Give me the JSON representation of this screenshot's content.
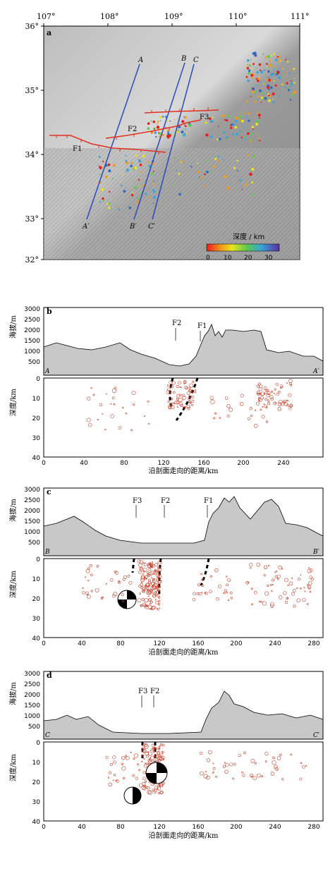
{
  "map": {
    "panel": "a",
    "lon_ticks": [
      "107°",
      "108°",
      "109°",
      "110°",
      "111°"
    ],
    "lat_ticks": [
      "36°",
      "35°",
      "34°",
      "33°",
      "32°"
    ],
    "profiles": [
      {
        "start": "A",
        "end": "A′"
      },
      {
        "start": "B",
        "end": "B′"
      },
      {
        "start": "C",
        "end": "C′"
      }
    ],
    "faults": [
      "F1",
      "F2",
      "F3"
    ],
    "legend": {
      "title": "深度 / km",
      "ticks": [
        "0",
        "10",
        "20",
        "30"
      ]
    }
  },
  "profile_b": {
    "panel": "b",
    "start": "A",
    "end": "A′",
    "elev_label": "海拔/m",
    "depth_label": "深度/km",
    "x_label": "沿剖面走向的距离/km",
    "elev_ticks": [
      "3000",
      "2500",
      "2000",
      "1500",
      "1000",
      "500"
    ],
    "depth_ticks": [
      "0",
      "10",
      "20",
      "30",
      "40"
    ],
    "x_ticks": [
      "0",
      "40",
      "80",
      "120",
      "160",
      "200",
      "240"
    ],
    "faults": [
      "F2",
      "F1"
    ]
  },
  "profile_c": {
    "panel": "c",
    "start": "B",
    "end": "B′",
    "elev_label": "海拔/m",
    "depth_label": "深度/km",
    "x_label": "沿剖面走向的距离/km",
    "elev_ticks": [
      "3000",
      "2500",
      "2000",
      "1500",
      "1000",
      "500"
    ],
    "depth_ticks": [
      "0",
      "10",
      "20",
      "30",
      "40"
    ],
    "x_ticks": [
      "0",
      "40",
      "80",
      "120",
      "160",
      "200",
      "240",
      "280"
    ],
    "faults": [
      "F3",
      "F2",
      "F1"
    ]
  },
  "profile_d": {
    "panel": "d",
    "start": "C",
    "end": "C′",
    "elev_label": "海拔/m",
    "depth_label": "深度/km",
    "x_label": "沿剖面走向的距离/km",
    "elev_ticks": [
      "3000",
      "2500",
      "2000",
      "1500",
      "1000",
      "500"
    ],
    "depth_ticks": [
      "0",
      "10",
      "20",
      "30",
      "40"
    ],
    "x_ticks": [
      "0",
      "40",
      "80",
      "120",
      "160",
      "200",
      "240",
      "280"
    ],
    "faults": [
      "F3",
      "F2"
    ]
  },
  "colors": {
    "fault": "#e0301e",
    "profile_line": "#2b4cb8",
    "quake": "#c8402a"
  }
}
